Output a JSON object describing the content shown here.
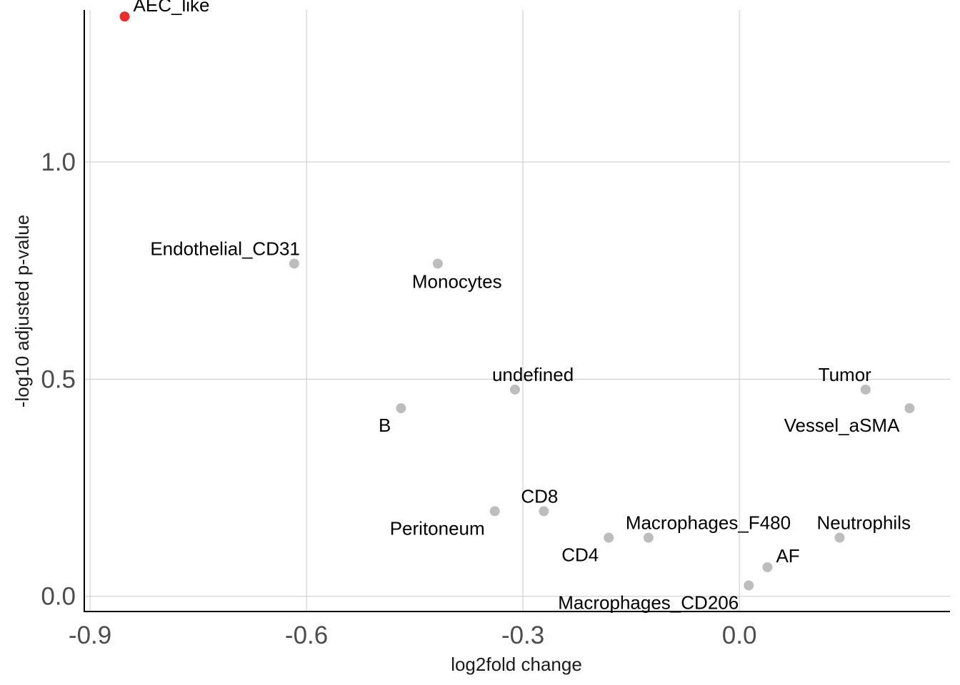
{
  "chart_data": {
    "type": "scatter",
    "title": "",
    "xlabel": "log2fold change",
    "ylabel": "-log10 adjusted p-value",
    "xlim": [
      -0.908,
      0.292
    ],
    "ylim": [
      -0.035,
      1.35
    ],
    "xticks": [
      -0.9,
      -0.6,
      -0.3,
      0.0
    ],
    "xtick_labels": [
      "-0.9",
      "-0.6",
      "-0.3",
      "0.0"
    ],
    "yticks": [
      0.0,
      0.5,
      1.0
    ],
    "ytick_labels": [
      "0.0",
      "0.5",
      "1.0"
    ],
    "grid": true,
    "colors": {
      "highlight": "#ee2a2a",
      "default": "#bdbdbd"
    },
    "points": [
      {
        "label": "AEC_like",
        "x": -0.852,
        "y": 1.335,
        "highlight": true,
        "label_pos": "upper-right"
      },
      {
        "label": "Endothelial_CD31",
        "x": -0.617,
        "y": 0.766,
        "highlight": false,
        "label_pos": "above-left"
      },
      {
        "label": "Monocytes",
        "x": -0.418,
        "y": 0.766,
        "highlight": false,
        "label_pos": "below-right"
      },
      {
        "label": "undefined",
        "x": -0.311,
        "y": 0.476,
        "highlight": false,
        "label_pos": "above-right"
      },
      {
        "label": "B",
        "x": -0.469,
        "y": 0.433,
        "highlight": false,
        "label_pos": "below-left"
      },
      {
        "label": "Tumor",
        "x": 0.175,
        "y": 0.476,
        "highlight": false,
        "label_pos": "above-left"
      },
      {
        "label": "Vessel_aSMA",
        "x": 0.236,
        "y": 0.433,
        "highlight": false,
        "label_pos": "below-left"
      },
      {
        "label": "CD8",
        "x": -0.271,
        "y": 0.196,
        "highlight": false,
        "label_pos": "above-right"
      },
      {
        "label": "Peritoneum",
        "x": -0.339,
        "y": 0.196,
        "highlight": false,
        "label_pos": "below-left"
      },
      {
        "label": "Macrophages_F480",
        "x": -0.126,
        "y": 0.135,
        "highlight": false,
        "label_pos": "above-right"
      },
      {
        "label": "CD4",
        "x": -0.181,
        "y": 0.135,
        "highlight": false,
        "label_pos": "below-left"
      },
      {
        "label": "Neutrophils",
        "x": 0.139,
        "y": 0.135,
        "highlight": false,
        "label_pos": "above-right"
      },
      {
        "label": "AF",
        "x": 0.039,
        "y": 0.067,
        "highlight": false,
        "label_pos": "upper-right"
      },
      {
        "label": "Macrophages_CD206",
        "x": 0.013,
        "y": 0.025,
        "highlight": false,
        "label_pos": "below-left"
      }
    ]
  }
}
